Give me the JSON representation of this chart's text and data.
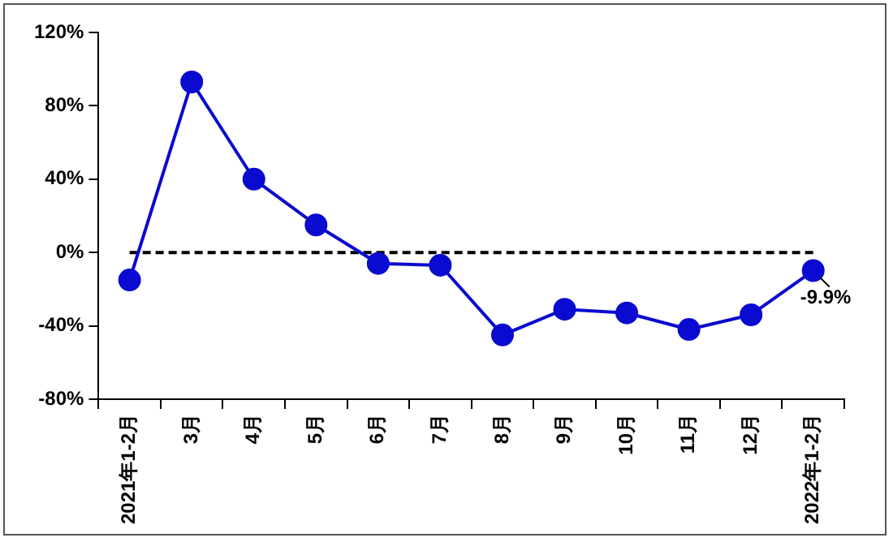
{
  "chart_data": {
    "type": "line",
    "categories": [
      "2021年1-2月",
      "3月",
      "4月",
      "5月",
      "6月",
      "7月",
      "8月",
      "9月",
      "10月",
      "11月",
      "12月",
      "2022年1-2月"
    ],
    "series": [
      {
        "color": "#0a0ad0",
        "values": [
          -15,
          93,
          40,
          15,
          -6,
          -7,
          -45,
          -31,
          -33,
          -42,
          -34,
          -9.9
        ],
        "value_labels": [
          null,
          null,
          null,
          null,
          null,
          null,
          null,
          null,
          null,
          null,
          null,
          "-9.9%"
        ]
      }
    ],
    "ylim": [
      -80,
      120
    ],
    "yticks": [
      {
        "value": -80,
        "label": "-80%"
      },
      {
        "value": -40,
        "label": "-40%"
      },
      {
        "value": 0,
        "label": "0%"
      },
      {
        "value": 40,
        "label": "40%"
      },
      {
        "value": 80,
        "label": "80%"
      },
      {
        "value": 120,
        "label": "120%"
      }
    ],
    "ref_lines": [
      {
        "axis": "y",
        "value": 0,
        "color": "#000000",
        "line_style": "dashed"
      }
    ],
    "grid": false,
    "legend": false,
    "marker": "circle",
    "line_style": "solid"
  }
}
